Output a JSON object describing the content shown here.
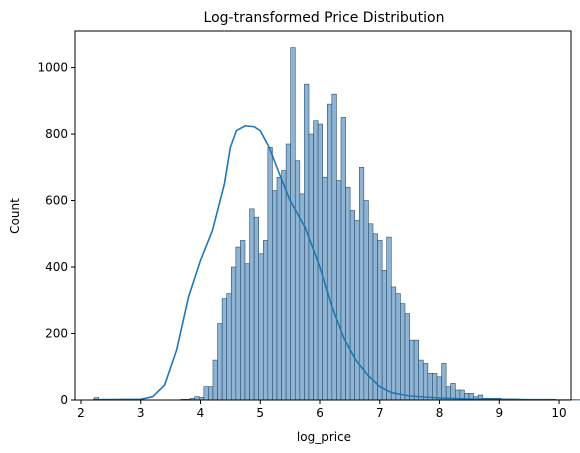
{
  "chart_data": {
    "type": "histogram",
    "title": "Log-transformed Price Distribution",
    "xlabel": "log_price",
    "ylabel": "Count",
    "xlim": [
      1.9,
      10.2
    ],
    "ylim": [
      0,
      1110
    ],
    "xticks": [
      2,
      3,
      4,
      5,
      6,
      7,
      8,
      9,
      10
    ],
    "yticks": [
      0,
      200,
      400,
      600,
      800,
      1000
    ],
    "bin_start": 2.22,
    "bin_width": 0.0765,
    "counts": [
      7,
      0,
      0,
      0,
      0,
      0,
      0,
      0,
      0,
      0,
      0,
      0,
      0,
      0,
      0,
      0,
      0,
      0,
      0,
      2,
      2,
      5,
      10,
      8,
      40,
      40,
      120,
      230,
      305,
      320,
      400,
      460,
      480,
      410,
      575,
      550,
      440,
      480,
      760,
      630,
      670,
      690,
      770,
      1060,
      720,
      620,
      950,
      800,
      840,
      830,
      670,
      890,
      920,
      660,
      850,
      640,
      570,
      540,
      700,
      600,
      530,
      500,
      480,
      390,
      490,
      340,
      320,
      290,
      260,
      180,
      180,
      120,
      110,
      80,
      80,
      70,
      110,
      40,
      50,
      30,
      30,
      20,
      20,
      10,
      15,
      5,
      5,
      5,
      5,
      3,
      3,
      3,
      3,
      2,
      2,
      2,
      2,
      1,
      1,
      1,
      2,
      1,
      1,
      1,
      1,
      1,
      1,
      1,
      1,
      1,
      1,
      1,
      1
    ],
    "kde": [
      [
        2.2,
        1
      ],
      [
        3.0,
        2
      ],
      [
        3.2,
        10
      ],
      [
        3.4,
        45
      ],
      [
        3.6,
        150
      ],
      [
        3.8,
        310
      ],
      [
        4.0,
        420
      ],
      [
        4.2,
        510
      ],
      [
        4.4,
        650
      ],
      [
        4.5,
        760
      ],
      [
        4.6,
        810
      ],
      [
        4.75,
        825
      ],
      [
        4.9,
        822
      ],
      [
        5.0,
        810
      ],
      [
        5.15,
        760
      ],
      [
        5.3,
        690
      ],
      [
        5.5,
        600
      ],
      [
        5.75,
        520
      ],
      [
        6.0,
        400
      ],
      [
        6.2,
        280
      ],
      [
        6.4,
        185
      ],
      [
        6.6,
        120
      ],
      [
        6.8,
        75
      ],
      [
        7.0,
        40
      ],
      [
        7.2,
        22
      ],
      [
        7.5,
        12
      ],
      [
        8.0,
        6
      ],
      [
        8.5,
        3
      ],
      [
        9.0,
        2
      ],
      [
        9.5,
        1
      ],
      [
        9.9,
        1
      ]
    ],
    "bar_fill": "#8fb4d3",
    "bar_edge": "#2b4f6e",
    "kde_color": "#1f77b4",
    "grid": false
  }
}
